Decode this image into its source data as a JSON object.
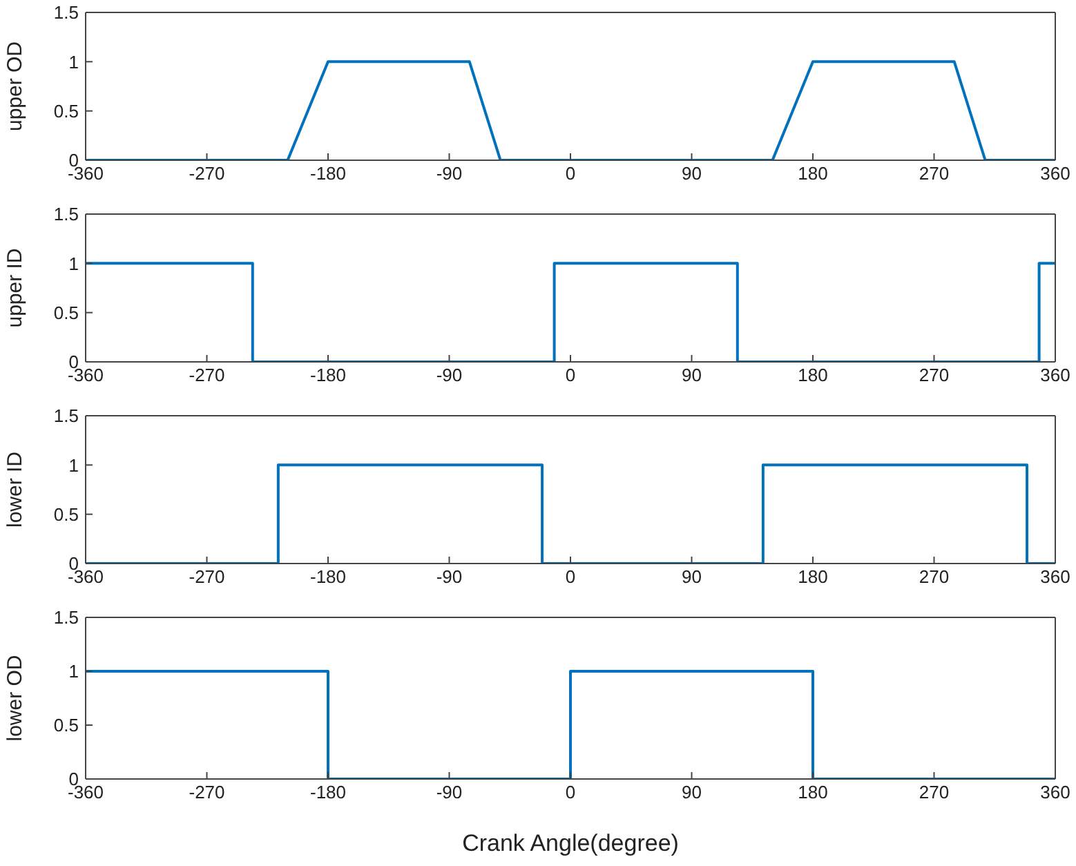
{
  "chart_data": [
    {
      "type": "line",
      "ylabel": "upper OD",
      "color": "#0072bd",
      "x": [
        -360,
        -210,
        -180,
        -75,
        -52,
        150,
        180,
        285,
        308,
        360
      ],
      "values": [
        0,
        0,
        1,
        1,
        0,
        0,
        1,
        1,
        0,
        0
      ],
      "xlim": [
        -360,
        360
      ],
      "xticks": [
        -360,
        -270,
        -180,
        -90,
        0,
        90,
        180,
        270,
        360
      ],
      "ylim": [
        0,
        1.5
      ],
      "yticks": [
        0,
        0.5,
        1,
        1.5
      ]
    },
    {
      "type": "line",
      "ylabel": "upper ID",
      "color": "#0072bd",
      "x": [
        -360,
        -236,
        -236,
        -12,
        -12,
        124,
        124,
        348,
        348,
        360
      ],
      "values": [
        1,
        1,
        0,
        0,
        1,
        1,
        0,
        0,
        1,
        1
      ],
      "xlim": [
        -360,
        360
      ],
      "xticks": [
        -360,
        -270,
        -180,
        -90,
        0,
        90,
        180,
        270,
        360
      ],
      "ylim": [
        0,
        1.5
      ],
      "yticks": [
        0,
        0.5,
        1,
        1.5
      ]
    },
    {
      "type": "line",
      "ylabel": "lower ID",
      "color": "#0072bd",
      "x": [
        -360,
        -217,
        -217,
        -21,
        -21,
        143,
        143,
        339,
        339,
        360
      ],
      "values": [
        0,
        0,
        1,
        1,
        0,
        0,
        1,
        1,
        0,
        0
      ],
      "xlim": [
        -360,
        360
      ],
      "xticks": [
        -360,
        -270,
        -180,
        -90,
        0,
        90,
        180,
        270,
        360
      ],
      "ylim": [
        0,
        1.5
      ],
      "yticks": [
        0,
        0.5,
        1,
        1.5
      ]
    },
    {
      "type": "line",
      "ylabel": "lower OD",
      "xlabel": "Crank Angle(degree)",
      "color": "#0072bd",
      "x": [
        -360,
        -180,
        -180,
        0,
        0,
        180,
        180,
        360
      ],
      "values": [
        1,
        1,
        0,
        0,
        1,
        1,
        0,
        0
      ],
      "xlim": [
        -360,
        360
      ],
      "xticks": [
        -360,
        -270,
        -180,
        -90,
        0,
        90,
        180,
        270,
        360
      ],
      "ylim": [
        0,
        1.5
      ],
      "yticks": [
        0,
        0.5,
        1,
        1.5
      ]
    }
  ]
}
